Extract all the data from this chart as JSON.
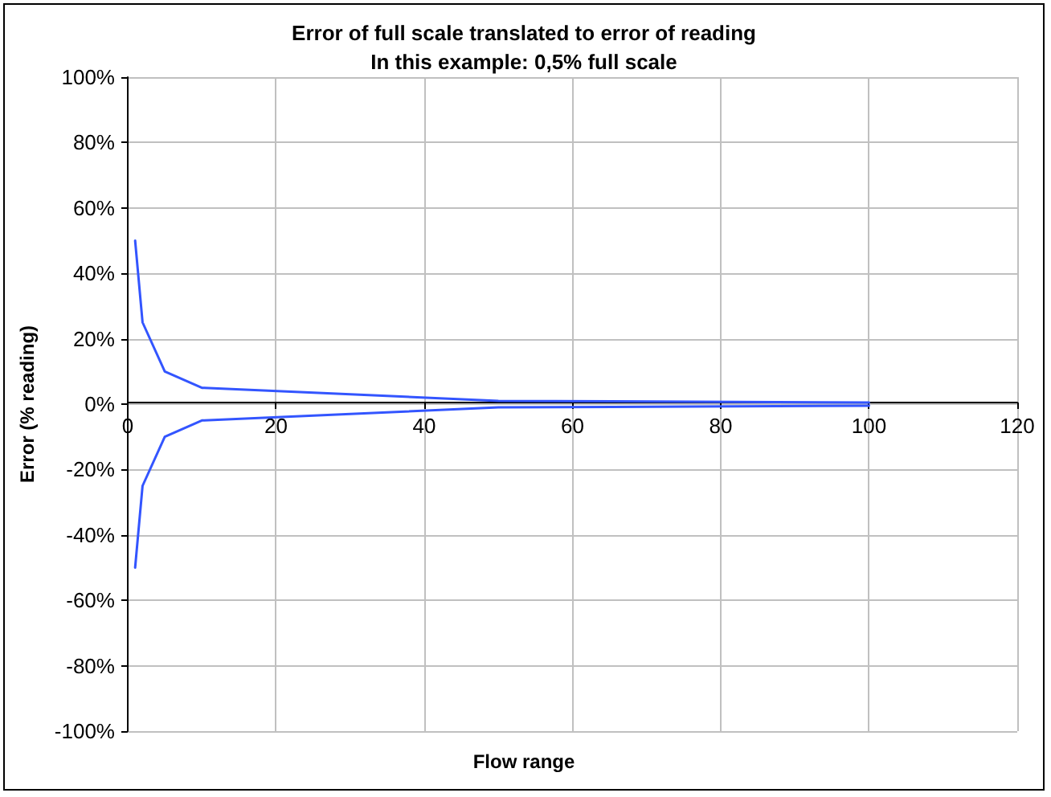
{
  "chart_data": {
    "type": "line",
    "title": "Error of full scale translated to error of reading",
    "subtitle": "In this example: 0,5% full scale",
    "xlabel": "Flow range",
    "ylabel": "Error (% reading)",
    "series": [
      {
        "color": "#3355ff",
        "x": [
          1,
          2,
          5,
          10,
          50,
          100
        ],
        "values": [
          50,
          25,
          10,
          5,
          1,
          0.5
        ]
      },
      {
        "color": "#3355ff",
        "x": [
          1,
          2,
          5,
          10,
          50,
          100
        ],
        "values": [
          -50,
          -25,
          -10,
          -5,
          -1,
          -0.5
        ]
      }
    ],
    "xlim": [
      0,
      120
    ],
    "xticks": [
      0,
      20,
      40,
      60,
      80,
      100,
      120
    ],
    "ylim": [
      -100,
      100
    ],
    "yticks": [
      {
        "value": -100,
        "label": "-100%"
      },
      {
        "value": -80,
        "label": "-80%"
      },
      {
        "value": -60,
        "label": "-60%"
      },
      {
        "value": -40,
        "label": "-40%"
      },
      {
        "value": -20,
        "label": "-20%"
      },
      {
        "value": 0,
        "label": "0%"
      },
      {
        "value": 20,
        "label": "20%"
      },
      {
        "value": 40,
        "label": "40%"
      },
      {
        "value": 60,
        "label": "60%"
      },
      {
        "value": 80,
        "label": "80%"
      },
      {
        "value": 100,
        "label": "100%"
      }
    ],
    "grid": true,
    "marker": "none",
    "line_style": "solid"
  }
}
